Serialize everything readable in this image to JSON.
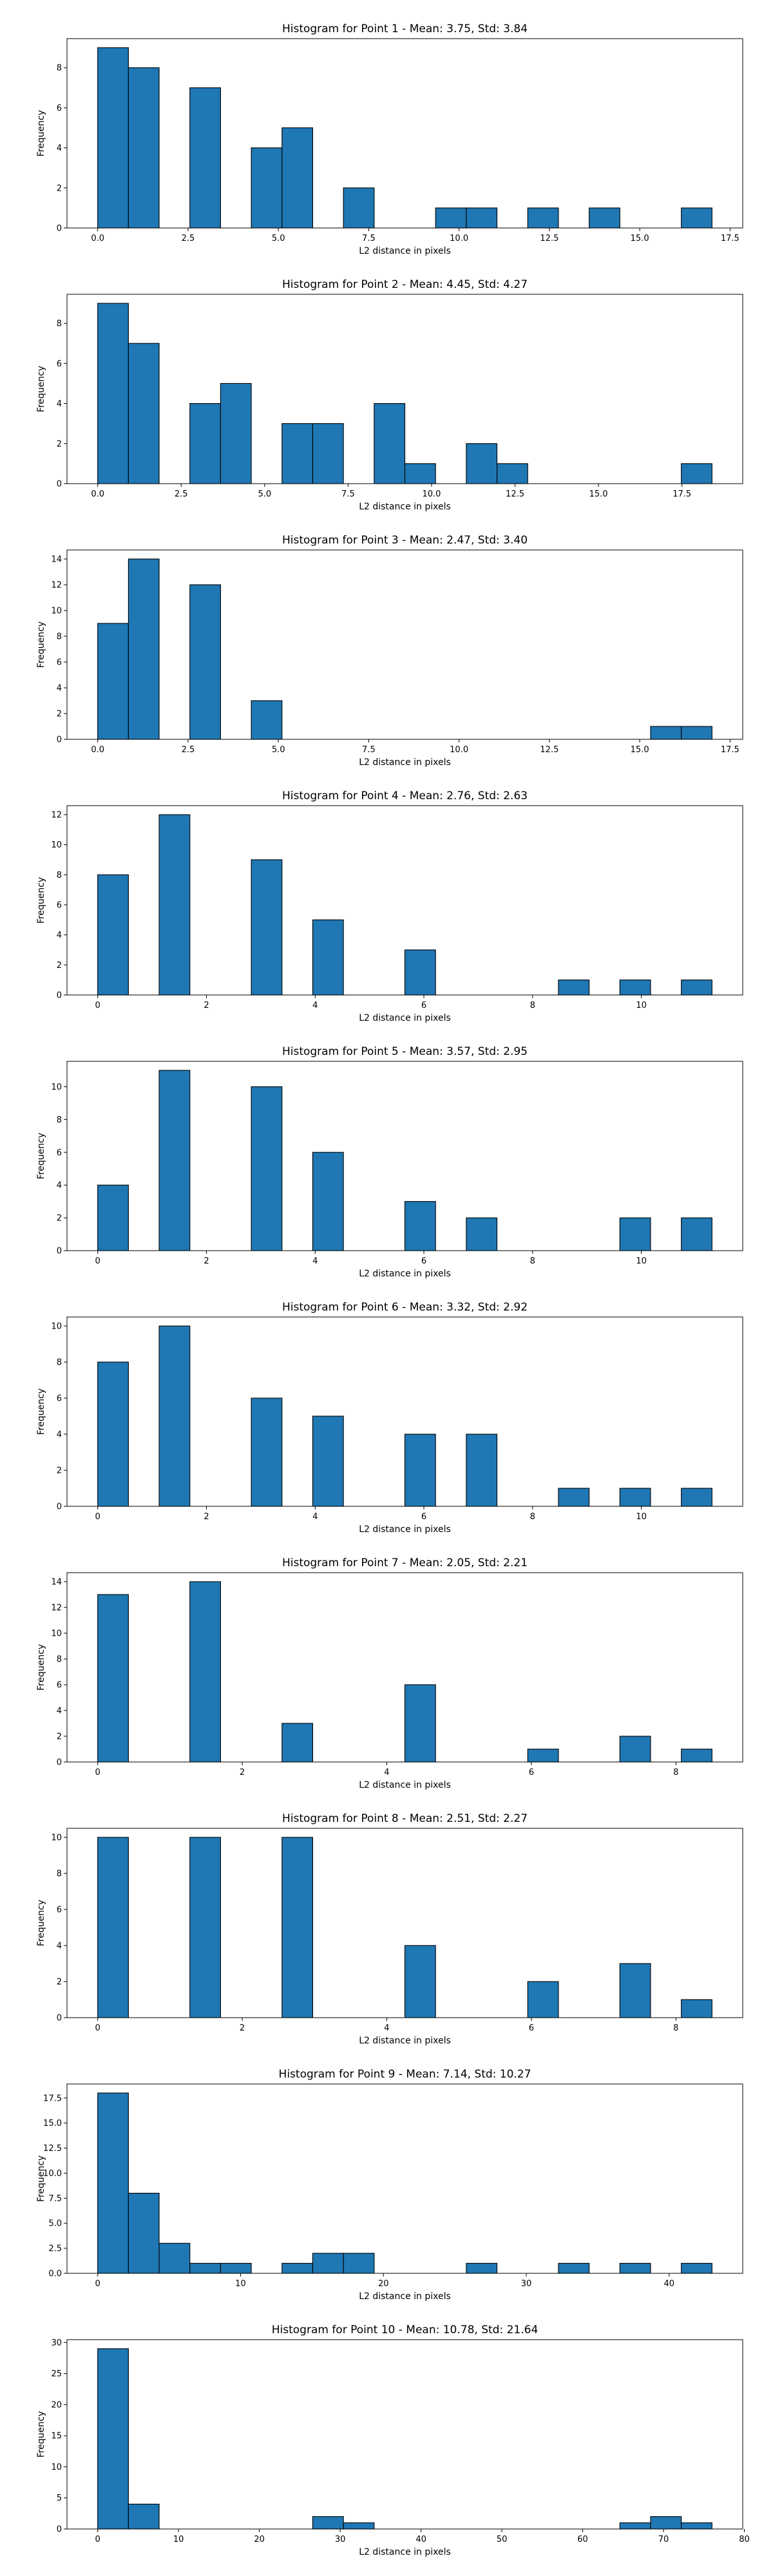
{
  "figure": {
    "bar_color": "#1f77b4",
    "edge_color": "#000000"
  },
  "chart_data": [
    {
      "type": "bar",
      "title": "Histogram for Point 1 - Mean: 3.75, Std: 3.84",
      "xlabel": "L2 distance in pixels",
      "ylabel": "Frequency",
      "xlim": [
        -0.85,
        17.85
      ],
      "ylim": [
        0,
        9.45
      ],
      "xticks": [
        0,
        2.5,
        5,
        7.5,
        10,
        12.5,
        15,
        17.5
      ],
      "xtick_labels": [
        "0.0",
        "2.5",
        "5.0",
        "7.5",
        "10.0",
        "12.5",
        "15.0",
        "17.5"
      ],
      "yticks": [
        0,
        2,
        4,
        6,
        8
      ],
      "ytick_labels": [
        "0",
        "2",
        "4",
        "6",
        "8"
      ],
      "bin_start": 0.0,
      "bin_width": 0.85,
      "values": [
        9,
        8,
        0,
        7,
        0,
        4,
        5,
        0,
        2,
        0,
        0,
        1,
        1,
        0,
        1,
        0,
        1,
        0,
        0,
        1
      ]
    },
    {
      "type": "bar",
      "title": "Histogram for Point 2 - Mean: 4.45, Std: 4.27",
      "xlabel": "L2 distance in pixels",
      "ylabel": "Frequency",
      "xlim": [
        -0.92,
        19.32
      ],
      "ylim": [
        0,
        9.45
      ],
      "xticks": [
        0,
        2.5,
        5,
        7.5,
        10,
        12.5,
        15,
        17.5
      ],
      "xtick_labels": [
        "0.0",
        "2.5",
        "5.0",
        "7.5",
        "10.0",
        "12.5",
        "15.0",
        "17.5"
      ],
      "yticks": [
        0,
        2,
        4,
        6,
        8
      ],
      "ytick_labels": [
        "0",
        "2",
        "4",
        "6",
        "8"
      ],
      "bin_start": 0.0,
      "bin_width": 0.92,
      "values": [
        9,
        7,
        0,
        4,
        5,
        0,
        3,
        3,
        0,
        4,
        1,
        0,
        2,
        1,
        0,
        0,
        0,
        0,
        0,
        1
      ]
    },
    {
      "type": "bar",
      "title": "Histogram for Point 3 - Mean: 2.47, Std: 3.40",
      "xlabel": "L2 distance in pixels",
      "ylabel": "Frequency",
      "xlim": [
        -0.85,
        17.85
      ],
      "ylim": [
        0,
        14.7
      ],
      "xticks": [
        0,
        2.5,
        5,
        7.5,
        10,
        12.5,
        15,
        17.5
      ],
      "xtick_labels": [
        "0.0",
        "2.5",
        "5.0",
        "7.5",
        "10.0",
        "12.5",
        "15.0",
        "17.5"
      ],
      "yticks": [
        0,
        2,
        4,
        6,
        8,
        10,
        12,
        14
      ],
      "ytick_labels": [
        "0",
        "2",
        "4",
        "6",
        "8",
        "10",
        "12",
        "14"
      ],
      "bin_start": 0.0,
      "bin_width": 0.85,
      "values": [
        9,
        14,
        0,
        12,
        0,
        3,
        0,
        0,
        0,
        0,
        0,
        0,
        0,
        0,
        0,
        0,
        0,
        0,
        1,
        1
      ]
    },
    {
      "type": "bar",
      "title": "Histogram for Point 4 - Mean: 2.76, Std: 2.63",
      "xlabel": "L2 distance in pixels",
      "ylabel": "Frequency",
      "xlim": [
        -0.565,
        11.865
      ],
      "ylim": [
        0,
        12.6
      ],
      "xticks": [
        0,
        2,
        4,
        6,
        8,
        10
      ],
      "xtick_labels": [
        "0",
        "2",
        "4",
        "6",
        "8",
        "10"
      ],
      "yticks": [
        0,
        2,
        4,
        6,
        8,
        10,
        12
      ],
      "ytick_labels": [
        "0",
        "2",
        "4",
        "6",
        "8",
        "10",
        "12"
      ],
      "bin_start": 0.0,
      "bin_width": 0.565,
      "values": [
        8,
        0,
        12,
        0,
        0,
        9,
        0,
        5,
        0,
        0,
        3,
        0,
        0,
        0,
        0,
        1,
        0,
        1,
        0,
        1
      ]
    },
    {
      "type": "bar",
      "title": "Histogram for Point 5 - Mean: 3.57, Std: 2.95",
      "xlabel": "L2 distance in pixels",
      "ylabel": "Frequency",
      "xlim": [
        -0.565,
        11.865
      ],
      "ylim": [
        0,
        11.55
      ],
      "xticks": [
        0,
        2,
        4,
        6,
        8,
        10
      ],
      "xtick_labels": [
        "0",
        "2",
        "4",
        "6",
        "8",
        "10"
      ],
      "yticks": [
        0,
        2,
        4,
        6,
        8,
        10
      ],
      "ytick_labels": [
        "0",
        "2",
        "4",
        "6",
        "8",
        "10"
      ],
      "bin_start": 0.0,
      "bin_width": 0.565,
      "values": [
        4,
        0,
        11,
        0,
        0,
        10,
        0,
        6,
        0,
        0,
        3,
        0,
        2,
        0,
        0,
        0,
        0,
        2,
        0,
        2
      ]
    },
    {
      "type": "bar",
      "title": "Histogram for Point 6 - Mean: 3.32, Std: 2.92",
      "xlabel": "L2 distance in pixels",
      "ylabel": "Frequency",
      "xlim": [
        -0.565,
        11.865
      ],
      "ylim": [
        0,
        10.5
      ],
      "xticks": [
        0,
        2,
        4,
        6,
        8,
        10
      ],
      "xtick_labels": [
        "0",
        "2",
        "4",
        "6",
        "8",
        "10"
      ],
      "yticks": [
        0,
        2,
        4,
        6,
        8,
        10
      ],
      "ytick_labels": [
        "0",
        "2",
        "4",
        "6",
        "8",
        "10"
      ],
      "bin_start": 0.0,
      "bin_width": 0.565,
      "values": [
        8,
        0,
        10,
        0,
        0,
        6,
        0,
        5,
        0,
        0,
        4,
        0,
        4,
        0,
        0,
        1,
        0,
        1,
        0,
        1
      ]
    },
    {
      "type": "bar",
      "title": "Histogram for Point 7 - Mean: 2.05, Std: 2.21",
      "xlabel": "L2 distance in pixels",
      "ylabel": "Frequency",
      "xlim": [
        -0.425,
        8.925
      ],
      "ylim": [
        0,
        14.7
      ],
      "xticks": [
        0,
        2,
        4,
        6,
        8
      ],
      "xtick_labels": [
        "0",
        "2",
        "4",
        "6",
        "8"
      ],
      "yticks": [
        0,
        2,
        4,
        6,
        8,
        10,
        12,
        14
      ],
      "ytick_labels": [
        "0",
        "2",
        "4",
        "6",
        "8",
        "10",
        "12",
        "14"
      ],
      "bin_start": 0.0,
      "bin_width": 0.425,
      "values": [
        13,
        0,
        0,
        14,
        0,
        0,
        3,
        0,
        0,
        0,
        6,
        0,
        0,
        0,
        1,
        0,
        0,
        2,
        0,
        1
      ]
    },
    {
      "type": "bar",
      "title": "Histogram for Point 8 - Mean: 2.51, Std: 2.27",
      "xlabel": "L2 distance in pixels",
      "ylabel": "Frequency",
      "xlim": [
        -0.425,
        8.925
      ],
      "ylim": [
        0,
        10.5
      ],
      "xticks": [
        0,
        2,
        4,
        6,
        8
      ],
      "xtick_labels": [
        "0",
        "2",
        "4",
        "6",
        "8"
      ],
      "yticks": [
        0,
        2,
        4,
        6,
        8,
        10
      ],
      "ytick_labels": [
        "0",
        "2",
        "4",
        "6",
        "8",
        "10"
      ],
      "bin_start": 0.0,
      "bin_width": 0.425,
      "values": [
        10,
        0,
        0,
        10,
        0,
        0,
        10,
        0,
        0,
        0,
        4,
        0,
        0,
        0,
        2,
        0,
        0,
        3,
        0,
        1
      ]
    },
    {
      "type": "bar",
      "title": "Histogram for Point 9 - Mean: 7.14, Std: 10.27",
      "xlabel": "L2 distance in pixels",
      "ylabel": "Frequency",
      "xlim": [
        -2.15,
        45.15
      ],
      "ylim": [
        0,
        18.9
      ],
      "xticks": [
        0,
        10,
        20,
        30,
        40
      ],
      "xtick_labels": [
        "0",
        "10",
        "20",
        "30",
        "40"
      ],
      "yticks": [
        0,
        2.5,
        5,
        7.5,
        10,
        12.5,
        15,
        17.5
      ],
      "ytick_labels": [
        "0.0",
        "2.5",
        "5.0",
        "7.5",
        "10.0",
        "12.5",
        "15.0",
        "17.5"
      ],
      "bin_start": 0.0,
      "bin_width": 2.15,
      "values": [
        18,
        8,
        3,
        1,
        1,
        0,
        1,
        2,
        2,
        0,
        0,
        0,
        1,
        0,
        0,
        1,
        0,
        1,
        0,
        1
      ]
    },
    {
      "type": "bar",
      "title": "Histogram for Point 10 - Mean: 10.78, Std: 21.64",
      "xlabel": "L2 distance in pixels",
      "ylabel": "Frequency",
      "xlim": [
        -3.8,
        79.8
      ],
      "ylim": [
        0,
        30.45
      ],
      "xticks": [
        0,
        10,
        20,
        30,
        40,
        50,
        60,
        70,
        80
      ],
      "xtick_labels": [
        "0",
        "10",
        "20",
        "30",
        "40",
        "50",
        "60",
        "70",
        "80"
      ],
      "yticks": [
        0,
        5,
        10,
        15,
        20,
        25,
        30
      ],
      "ytick_labels": [
        "0",
        "5",
        "10",
        "15",
        "20",
        "25",
        "30"
      ],
      "bin_start": 0.0,
      "bin_width": 3.8,
      "values": [
        29,
        4,
        0,
        0,
        0,
        0,
        0,
        2,
        1,
        0,
        0,
        0,
        0,
        0,
        0,
        0,
        0,
        1,
        2,
        1
      ]
    }
  ]
}
